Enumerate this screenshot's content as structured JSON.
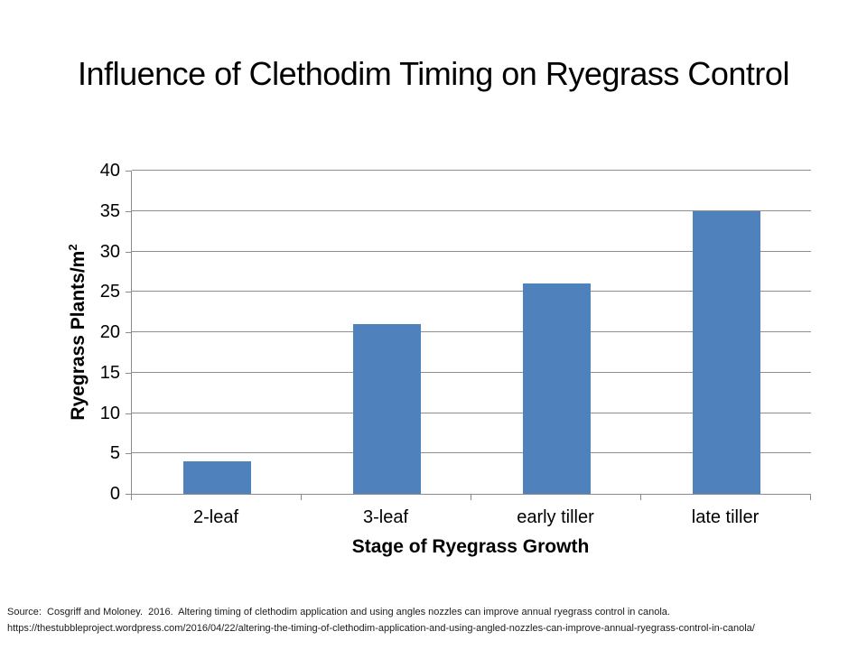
{
  "title": "Influence of Clethodim Timing on Ryegrass Control",
  "chart_data": {
    "type": "bar",
    "title": "Influence of Clethodim Timing on Ryegrass Control",
    "categories": [
      "2-leaf",
      "3-leaf",
      "early tiller",
      "late tiller"
    ],
    "values": [
      4,
      21,
      26,
      35
    ],
    "xlabel": "Stage of Ryegrass Growth",
    "ylabel": "Ryegrass Plants/m2",
    "ylabel_main": "Ryegrass Plants/m",
    "ylabel_sup": "2",
    "ylim": [
      0,
      40
    ],
    "yticks": [
      0,
      5,
      10,
      15,
      20,
      25,
      30,
      35,
      40
    ],
    "grid": true,
    "legend": false,
    "bar_color": "#4F81BD",
    "gridline_color": "#8f8f8f",
    "axis_color": "#8a8a8a"
  },
  "source": {
    "line1": "Source:  Cosgriff and Moloney.  2016.  Altering timing of clethodim application and using angles nozzles can improve annual ryegrass control in canola.",
    "line2": "https://thestubbleproject.wordpress.com/2016/04/22/altering-the-timing-of-clethodim-application-and-using-angled-nozzles-can-improve-annual-ryegrass-control-in-canola/"
  }
}
